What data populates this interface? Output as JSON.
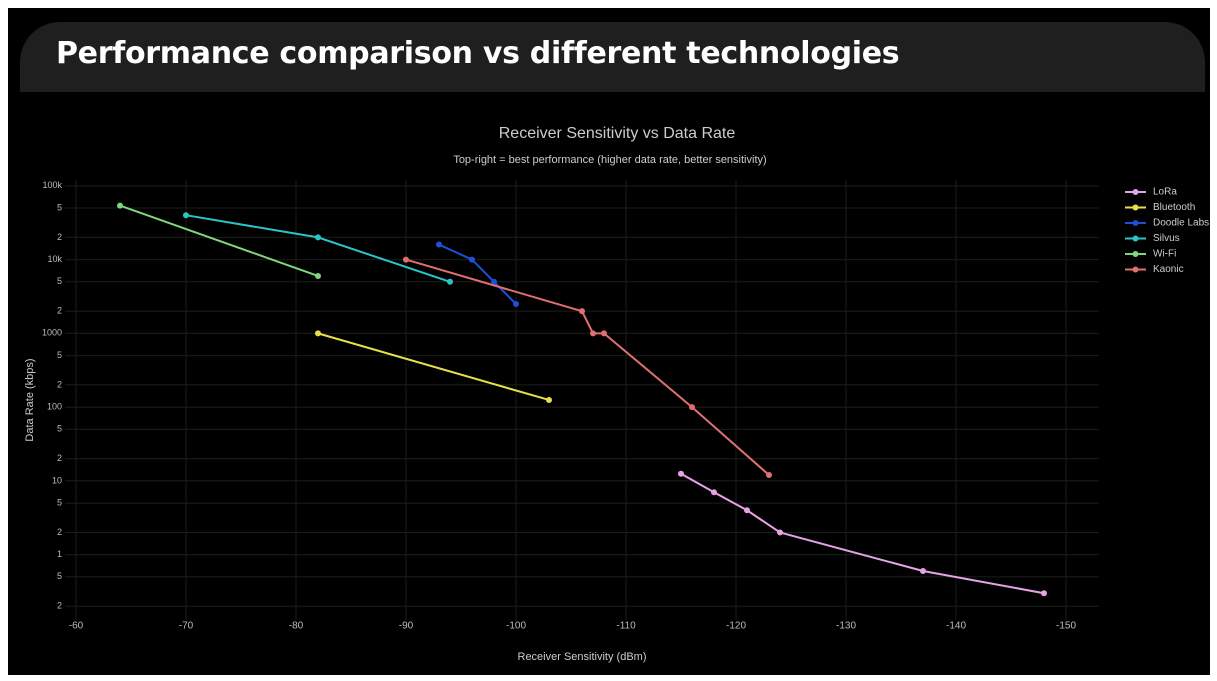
{
  "header": {
    "title": "Performance comparison vs different technologies"
  },
  "chart_data": {
    "type": "line",
    "title": "Receiver Sensitivity vs Data Rate",
    "subtitle": "Top-right = best performance (higher data rate, better sensitivity)",
    "x_label": "Receiver Sensitivity (dBm)",
    "y_label": "Data Rate (kbps)",
    "log_y": true,
    "grid": true,
    "legend": "right",
    "xlim": [
      -59,
      -153
    ],
    "xticks": [
      -60,
      -70,
      -80,
      -90,
      -100,
      -110,
      -120,
      -130,
      -140,
      -150
    ],
    "ylim": [
      0.13,
      120000
    ],
    "yticks": [
      {
        "value": 100000,
        "label": "100k"
      },
      {
        "value": 50000,
        "label": "5"
      },
      {
        "value": 20000,
        "label": "2"
      },
      {
        "value": 10000,
        "label": "10k"
      },
      {
        "value": 5000,
        "label": "5"
      },
      {
        "value": 2000,
        "label": "2"
      },
      1000,
      {
        "value": 500,
        "label": "5"
      },
      {
        "value": 200,
        "label": "2"
      },
      100,
      {
        "value": 50,
        "label": "5"
      },
      {
        "value": 20,
        "label": "2"
      },
      10,
      {
        "value": 5,
        "label": "5"
      },
      {
        "value": 2,
        "label": "2"
      },
      1,
      {
        "value": 0.5,
        "label": "5"
      },
      {
        "value": 0.2,
        "label": "2"
      }
    ],
    "series": [
      {
        "name": "LoRa",
        "color": "#e6a3e6",
        "x": [
          -115,
          -118,
          -121,
          -124,
          -137,
          -148
        ],
        "values": [
          12.5,
          7,
          4,
          2,
          0.6,
          0.3
        ]
      },
      {
        "name": "Bluetooth",
        "color": "#e8e04a",
        "x": [
          -82,
          -103
        ],
        "values": [
          1000,
          125
        ]
      },
      {
        "name": "Doodle Labs",
        "color": "#1f4fd6",
        "x": [
          -93,
          -96,
          -98,
          -100
        ],
        "values": [
          16000,
          10000,
          5000,
          2500
        ]
      },
      {
        "name": "Silvus",
        "color": "#2bc4c8",
        "x": [
          -70,
          -82,
          -94
        ],
        "values": [
          40000,
          20000,
          5000
        ]
      },
      {
        "name": "Wi-Fi",
        "color": "#7fd67f",
        "x": [
          -64,
          -82
        ],
        "values": [
          54000,
          6000
        ]
      },
      {
        "name": "Kaonic",
        "color": "#e07070",
        "x": [
          -90,
          -106,
          -107,
          -108,
          -116,
          -123
        ],
        "values": [
          10000,
          2000,
          1000,
          1000,
          100,
          12
        ]
      }
    ]
  }
}
